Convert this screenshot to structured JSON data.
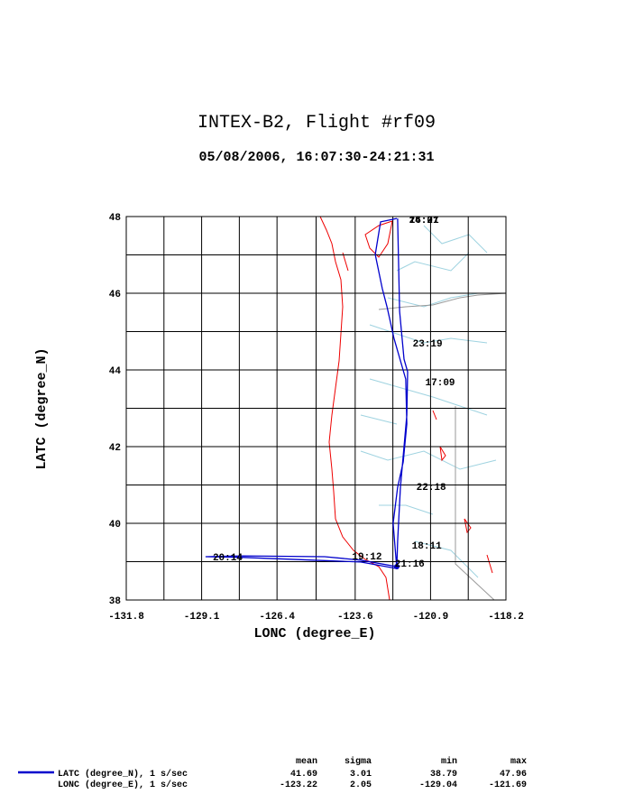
{
  "chart_data": {
    "type": "track",
    "title": "INTEX-B2, Flight #rf09",
    "subtitle": "05/08/2006, 16:07:30-24:21:31",
    "xlabel": "LONC (degree_E)",
    "ylabel": "LATC (degree_N)",
    "xlim": [
      -131.8,
      -118.2
    ],
    "ylim": [
      38,
      48
    ],
    "xticks": [
      -131.8,
      -129.1,
      -126.4,
      -123.6,
      -120.9,
      -118.2
    ],
    "yticks": [
      38,
      40,
      42,
      44,
      46,
      48
    ],
    "xminor": [
      -130.45,
      -127.75,
      -125.0,
      -122.25,
      -119.55
    ],
    "yminor": [
      39,
      41,
      43,
      45,
      47
    ],
    "grid": true,
    "series": [
      {
        "color": "#0000cc",
        "x": [
          -122.08,
          -122.01,
          -121.85,
          -121.72,
          -121.75,
          -121.85,
          -121.98,
          -122.08,
          -122.11,
          -123.4,
          -124.69,
          -127.6,
          -128.96,
          -127.6,
          -123.4,
          -122.11,
          -122.24,
          -122.08,
          -121.88,
          -121.75,
          -121.79,
          -122.21,
          -122.46,
          -122.63,
          -122.88,
          -122.69,
          -122.11
        ],
        "values": [
          47.95,
          45.53,
          44.28,
          43.95,
          42.82,
          42.0,
          40.94,
          39.53,
          38.87,
          39.04,
          39.13,
          39.15,
          39.13,
          39.11,
          38.99,
          38.82,
          40.0,
          40.94,
          41.6,
          42.59,
          43.76,
          44.82,
          45.65,
          46.12,
          47.01,
          47.86,
          47.95
        ]
      }
    ],
    "annotations": [
      {
        "text": "16:07",
        "x": -121.67,
        "y": 47.93
      },
      {
        "text": "24:21",
        "x": -121.67,
        "y": 47.93
      },
      {
        "text": "23:19",
        "x": -121.54,
        "y": 44.71
      },
      {
        "text": "17:09",
        "x": -121.09,
        "y": 43.69
      },
      {
        "text": "22:18",
        "x": -121.41,
        "y": 40.96
      },
      {
        "text": "18:11",
        "x": -121.57,
        "y": 39.44
      },
      {
        "text": "21:16",
        "x": -122.18,
        "y": 38.96
      },
      {
        "text": "19:12",
        "x": -123.71,
        "y": 39.15
      },
      {
        "text": "20:14",
        "x": -128.7,
        "y": 39.13
      }
    ],
    "stats": {
      "columns": [
        "mean",
        "sigma",
        "min",
        "max"
      ],
      "rows": [
        {
          "label": "LATC (degree_N), 1 s/sec",
          "values": [
            41.69,
            3.01,
            38.79,
            47.96
          ]
        },
        {
          "label": "LONC (degree_E), 1 s/sec",
          "values": [
            -123.22,
            2.05,
            -129.04,
            -121.69
          ]
        }
      ]
    }
  }
}
